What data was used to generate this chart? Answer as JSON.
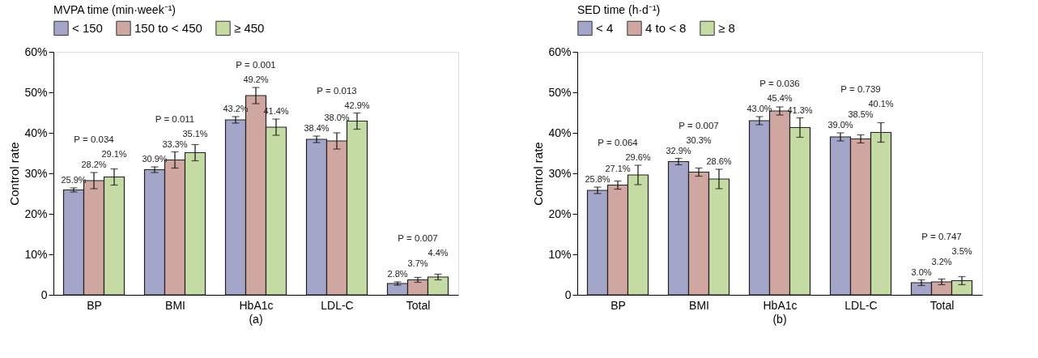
{
  "chart_data": [
    {
      "type": "bar",
      "ylabel": "Control rate",
      "legend_title": "MVPA time (min·week⁻¹)",
      "legend": "top",
      "grid": false,
      "categories": [
        "BP",
        "BMI",
        "HbA1c",
        "LDL-C",
        "Total"
      ],
      "ylim": [
        0,
        60
      ],
      "yticks": [
        0,
        {
          "value": 10,
          "label": "10%"
        },
        {
          "value": 20,
          "label": "20%"
        },
        {
          "value": 30,
          "label": "30%"
        },
        {
          "value": 40,
          "label": "40%"
        },
        {
          "value": 50,
          "label": "50%"
        },
        {
          "value": 60,
          "label": "60%"
        }
      ],
      "series": [
        {
          "name": "< 150",
          "color": "#a3a5c9",
          "values": [
            25.9,
            30.9,
            43.2,
            38.4,
            2.8
          ],
          "errors": [
            0.5,
            0.7,
            0.8,
            0.8,
            0.4
          ],
          "value_labels": [
            "25.9%",
            "30.9%",
            "43.2%",
            "38.4%",
            "2.8%"
          ]
        },
        {
          "name": "150 to < 450",
          "color": "#cfa6a0",
          "values": [
            28.2,
            33.3,
            49.2,
            38.0,
            3.7
          ],
          "errors": [
            2,
            2,
            2,
            2,
            0.6
          ],
          "value_labels": [
            "28.2%",
            "33.3%",
            "49.2%",
            "38.0%",
            "3.7%"
          ]
        },
        {
          "name": "≥ 450",
          "color": "#c5dba4",
          "values": [
            29.1,
            35.1,
            41.4,
            42.9,
            4.4
          ],
          "errors": [
            2,
            2,
            2,
            2,
            0.7
          ],
          "value_labels": [
            "29.1%",
            "35.1%",
            "41.4%",
            "42.9%",
            "4.4%"
          ]
        }
      ],
      "annotations": [
        "P = 0.034",
        "P = 0.011",
        "P = 0.001",
        "P = 0.013",
        "P = 0.007",
        "(a)"
      ]
    },
    {
      "type": "bar",
      "ylabel": "Control rate",
      "legend_title": "SED time (h·d⁻¹)",
      "legend": "top",
      "grid": false,
      "categories": [
        "BP",
        "BMI",
        "HbA1c",
        "LDL-C",
        "Total"
      ],
      "ylim": [
        0,
        60
      ],
      "yticks": [
        0,
        {
          "value": 10,
          "label": "10%"
        },
        {
          "value": 20,
          "label": "20%"
        },
        {
          "value": 30,
          "label": "30%"
        },
        {
          "value": 40,
          "label": "40%"
        },
        {
          "value": 50,
          "label": "50%"
        },
        {
          "value": 60,
          "label": "60%"
        }
      ],
      "series": [
        {
          "name": "< 4",
          "color": "#a3a5c9",
          "values": [
            25.8,
            32.9,
            43.0,
            39.0,
            3.0
          ],
          "errors": [
            0.8,
            0.8,
            1,
            1,
            0.7
          ],
          "value_labels": [
            "25.8%",
            "32.9%",
            "43.0%",
            "39.0%",
            "3.0%"
          ]
        },
        {
          "name": "4 to < 8",
          "color": "#cfa6a0",
          "values": [
            27.1,
            30.3,
            45.4,
            38.5,
            3.2
          ],
          "errors": [
            1,
            1,
            1,
            1,
            0.7
          ],
          "value_labels": [
            "27.1%",
            "30.3%",
            "45.4%",
            "38.5%",
            "3.2%"
          ]
        },
        {
          "name": "≥ 8",
          "color": "#c5dba4",
          "values": [
            29.6,
            28.6,
            41.3,
            40.1,
            3.5
          ],
          "errors": [
            2.4,
            2.4,
            2.4,
            2.4,
            1
          ],
          "value_labels": [
            "29.6%",
            "28.6%",
            "41.3%",
            "40.1%",
            "3.5%"
          ]
        }
      ],
      "annotations": [
        "P = 0.064",
        "P = 0.007",
        "P = 0.036",
        "P = 0.739",
        "P = 0.747",
        "(b)"
      ]
    }
  ]
}
